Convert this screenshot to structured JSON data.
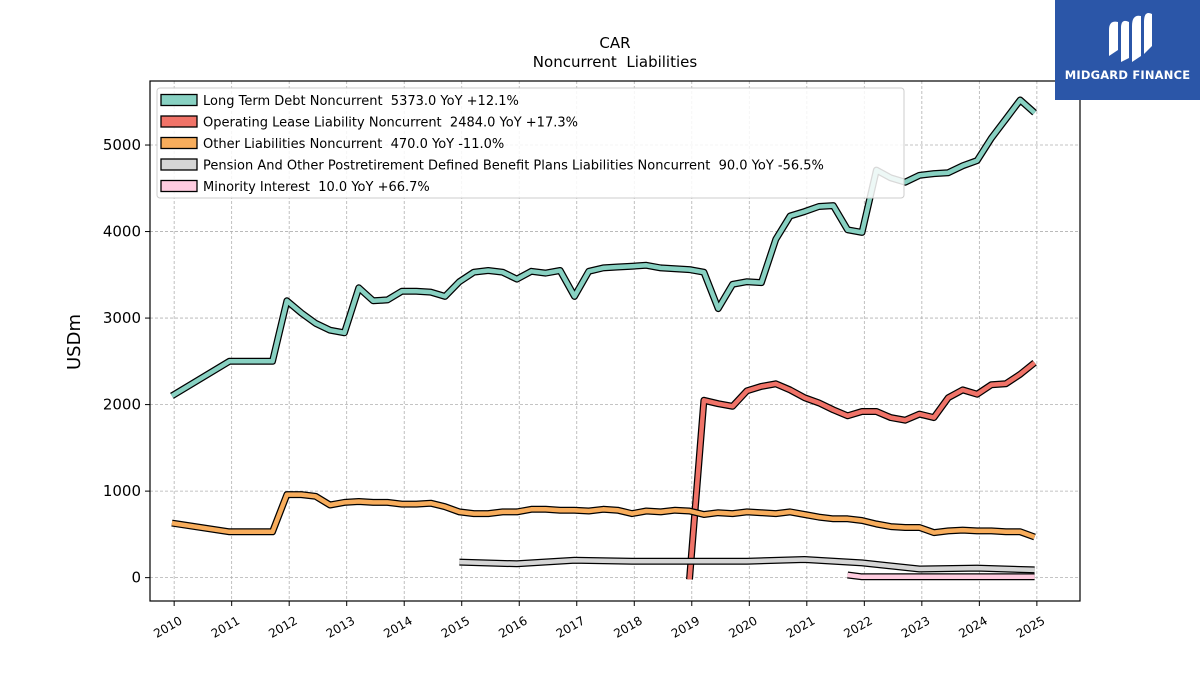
{
  "brand": {
    "name": "MIDGARD FINANCE",
    "color": "#2b56a8",
    "icon": "midgard-logo-icon"
  },
  "chart_data": {
    "type": "line",
    "title": "CAR",
    "subtitle": "Noncurrent  Liabilities",
    "xlabel": "",
    "ylabel": "USDm",
    "xlim": [
      2009.58,
      2025.75
    ],
    "ylim": [
      -270,
      5740
    ],
    "x_ticks": [
      "2010",
      "2011",
      "2012",
      "2013",
      "2014",
      "2015",
      "2016",
      "2017",
      "2018",
      "2019",
      "2020",
      "2021",
      "2022",
      "2023",
      "2024",
      "2025"
    ],
    "y_ticks": [
      0,
      1000,
      2000,
      3000,
      4000,
      5000
    ],
    "grid": true,
    "legend_position": "top-left",
    "series": [
      {
        "name": "Long Term Debt Noncurrent",
        "legend_label": "Long Term Debt Noncurrent  5373.0 YoY +12.1%",
        "color": "#88d1c2",
        "x": [
          2009.96,
          2010.96,
          2011.21,
          2011.46,
          2011.71,
          2011.96,
          2012.21,
          2012.46,
          2012.71,
          2012.96,
          2013.21,
          2013.46,
          2013.71,
          2013.96,
          2014.21,
          2014.46,
          2014.71,
          2014.96,
          2015.21,
          2015.46,
          2015.71,
          2015.96,
          2016.21,
          2016.46,
          2016.71,
          2016.96,
          2017.21,
          2017.46,
          2017.71,
          2017.96,
          2018.21,
          2018.46,
          2018.71,
          2018.96,
          2019.21,
          2019.46,
          2019.71,
          2019.96,
          2020.21,
          2020.46,
          2020.71,
          2020.96,
          2021.21,
          2021.46,
          2021.71,
          2021.96,
          2022.21,
          2022.46,
          2022.71,
          2022.96,
          2023.21,
          2023.46,
          2023.71,
          2023.96,
          2024.21,
          2024.46,
          2024.71,
          2024.96
        ],
        "y": [
          2100,
          2500,
          2500,
          2500,
          2500,
          3200,
          3060,
          2940,
          2860,
          2830,
          3350,
          3200,
          3210,
          3310,
          3310,
          3300,
          3250,
          3420,
          3530,
          3550,
          3530,
          3450,
          3540,
          3520,
          3550,
          3250,
          3540,
          3580,
          3590,
          3600,
          3610,
          3580,
          3570,
          3560,
          3530,
          3110,
          3390,
          3420,
          3410,
          3910,
          4180,
          4230,
          4290,
          4300,
          4020,
          3990,
          4710,
          4620,
          4570,
          4650,
          4670,
          4680,
          4760,
          4820,
          5080,
          5300,
          5520,
          5373
        ]
      },
      {
        "name": "Operating Lease Liability Noncurrent",
        "legend_label": "Operating Lease Liability Noncurrent  2484.0 YoY +17.3%",
        "color": "#f07368",
        "x": [
          2018.96,
          2019.21,
          2019.46,
          2019.71,
          2019.96,
          2020.21,
          2020.46,
          2020.71,
          2020.96,
          2021.21,
          2021.46,
          2021.71,
          2021.96,
          2022.21,
          2022.46,
          2022.71,
          2022.96,
          2023.21,
          2023.46,
          2023.71,
          2023.96,
          2024.21,
          2024.46,
          2024.71,
          2024.96
        ],
        "y": [
          -20,
          2050,
          2010,
          1980,
          2160,
          2210,
          2240,
          2170,
          2080,
          2020,
          1940,
          1870,
          1920,
          1920,
          1850,
          1820,
          1890,
          1850,
          2080,
          2170,
          2120,
          2230,
          2240,
          2350,
          2484
        ]
      },
      {
        "name": "Other Liabilities Noncurrent",
        "legend_label": "Other Liabilities Noncurrent  470.0 YoY -11.0%",
        "color": "#f8ad5c",
        "x": [
          2009.96,
          2010.96,
          2011.21,
          2011.46,
          2011.71,
          2011.96,
          2012.21,
          2012.46,
          2012.71,
          2012.96,
          2013.21,
          2013.46,
          2013.71,
          2013.96,
          2014.21,
          2014.46,
          2014.71,
          2014.96,
          2015.21,
          2015.46,
          2015.71,
          2015.96,
          2016.21,
          2016.46,
          2016.71,
          2016.96,
          2017.21,
          2017.46,
          2017.71,
          2017.96,
          2018.21,
          2018.46,
          2018.71,
          2018.96,
          2019.21,
          2019.46,
          2019.71,
          2019.96,
          2020.21,
          2020.46,
          2020.71,
          2020.96,
          2021.21,
          2021.46,
          2021.71,
          2021.96,
          2022.21,
          2022.46,
          2022.71,
          2022.96,
          2023.21,
          2023.46,
          2023.71,
          2023.96,
          2024.21,
          2024.46,
          2024.71,
          2024.96
        ],
        "y": [
          630,
          530,
          530,
          530,
          530,
          960,
          960,
          940,
          840,
          870,
          880,
          870,
          870,
          850,
          850,
          860,
          820,
          760,
          740,
          740,
          760,
          760,
          790,
          790,
          780,
          780,
          770,
          790,
          780,
          740,
          770,
          760,
          780,
          770,
          730,
          750,
          740,
          760,
          750,
          740,
          760,
          730,
          700,
          680,
          680,
          660,
          620,
          590,
          580,
          580,
          520,
          540,
          550,
          540,
          540,
          530,
          530,
          470
        ]
      },
      {
        "name": "Pension And Other Postretirement Defined Benefit Plans Liabilities Noncurrent",
        "legend_label": "Pension And Other Postretirement Defined Benefit Plans Liabilities Noncurrent  90.0 YoY -56.5%",
        "color": "#d5d5d5",
        "x": [
          2014.96,
          2015.96,
          2016.96,
          2017.96,
          2018.96,
          2019.96,
          2020.96,
          2021.96,
          2022.96,
          2023.96,
          2024.96
        ],
        "y": [
          180,
          160,
          200,
          190,
          190,
          190,
          210,
          170,
          100,
          110,
          90
        ]
      },
      {
        "name": "Minority Interest",
        "legend_label": "Minority Interest  10.0 YoY +66.7%",
        "color": "#ffcce0",
        "x": [
          2021.71,
          2021.96,
          2022.21,
          2022.46,
          2022.71,
          2022.96,
          2023.21,
          2023.46,
          2023.71,
          2023.96,
          2024.21,
          2024.46,
          2024.71,
          2024.96
        ],
        "y": [
          30,
          10,
          10,
          10,
          10,
          10,
          10,
          10,
          10,
          10,
          10,
          10,
          10,
          10
        ]
      }
    ]
  }
}
